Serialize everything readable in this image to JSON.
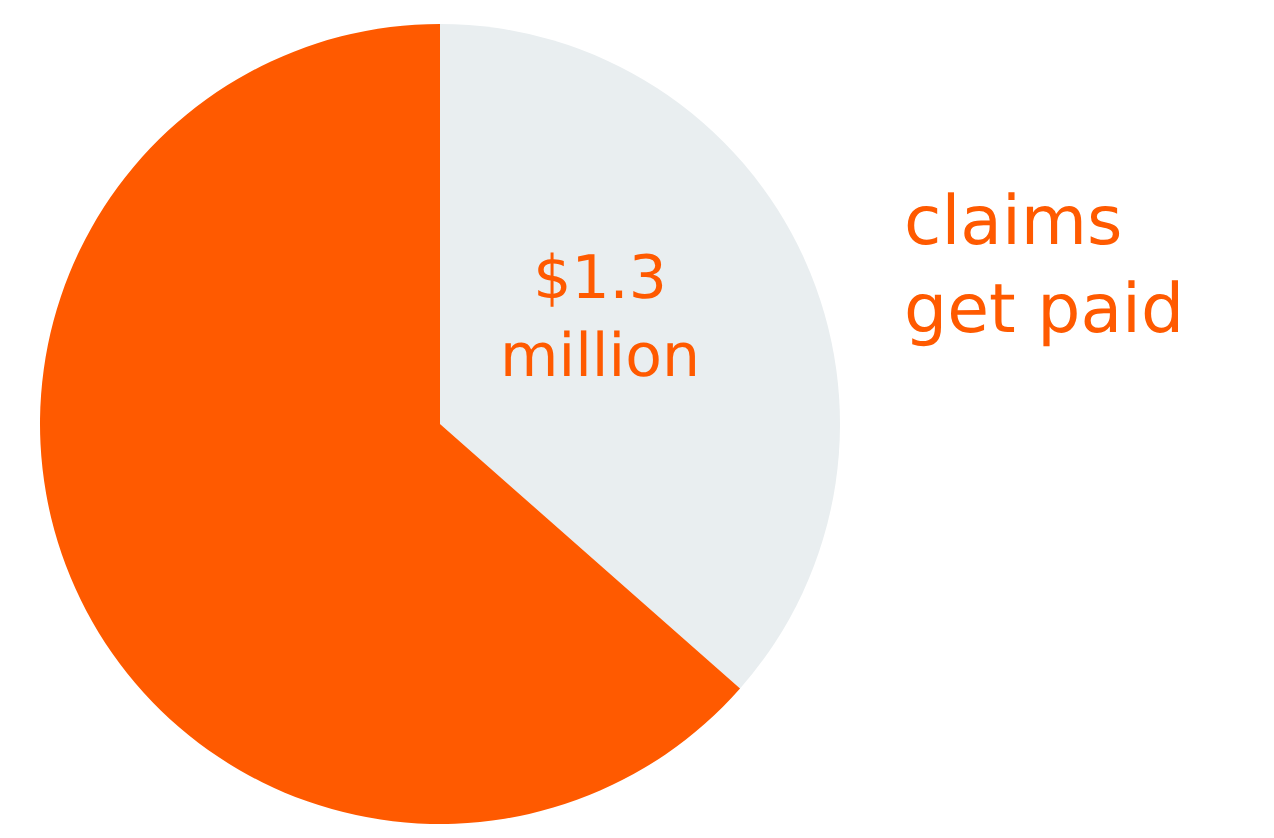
{
  "chart_data": {
    "type": "pie",
    "categories": [
      null,
      null
    ],
    "values": [
      36.5,
      63.5
    ],
    "colors": [
      "#e9eef0",
      "#ff5a00"
    ],
    "annotations": [
      "$1.3 million",
      "claims get paid"
    ]
  }
}
